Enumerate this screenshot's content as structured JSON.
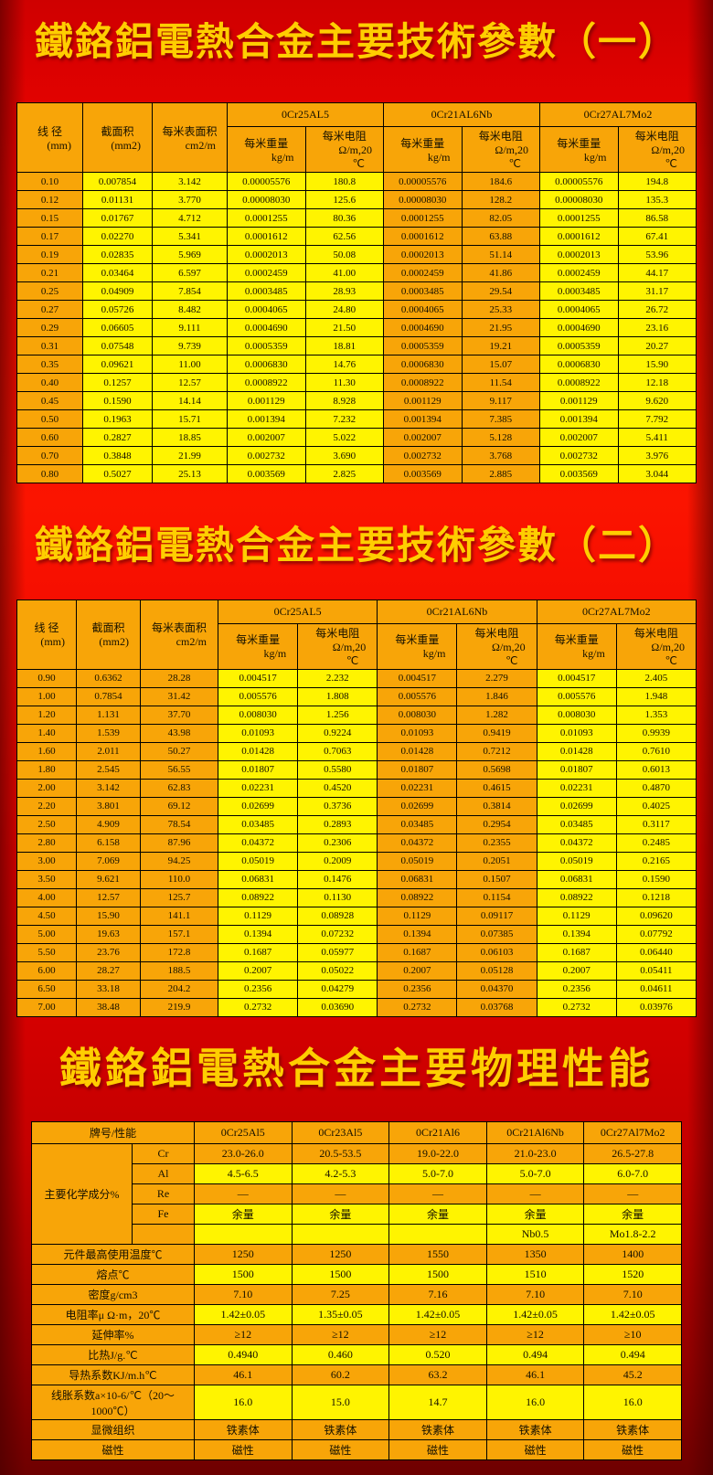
{
  "page": {
    "title1": "鐵鉻鋁電熱合金主要技術參數（一）",
    "title2": "鐵鉻鋁電熱合金主要技術參數（二）",
    "title3": "鐵鉻鋁電熱合金主要物理性能"
  },
  "colors": {
    "background_red": "#E80000",
    "title_gold": "#FFCE00",
    "cell_orange": "#F8A508",
    "cell_yellow": "#FFF400",
    "border_black": "#000000"
  },
  "param_headers": {
    "diameter": "线 径",
    "diameter_unit": "(mm)",
    "area": "截面积",
    "area_unit": "(mm2)",
    "surface": "每米表面积",
    "surface_unit": "cm2/m",
    "alloys": [
      "0Cr25AL5",
      "0Cr21AL6Nb",
      "0Cr27AL7Mo2"
    ],
    "weight_label": "每米重量",
    "weight_unit": "kg/m",
    "resistance_label": "每米电阻",
    "resistance_unit": "Ω/m,20",
    "resistance_unit2": "℃"
  },
  "table1": {
    "rows": [
      [
        "0.10",
        "0.007854",
        "3.142",
        "0.00005576",
        "180.8",
        "0.00005576",
        "184.6",
        "0.00005576",
        "194.8"
      ],
      [
        "0.12",
        "0.01131",
        "3.770",
        "0.00008030",
        "125.6",
        "0.00008030",
        "128.2",
        "0.00008030",
        "135.3"
      ],
      [
        "0.15",
        "0.01767",
        "4.712",
        "0.0001255",
        "80.36",
        "0.0001255",
        "82.05",
        "0.0001255",
        "86.58"
      ],
      [
        "0.17",
        "0.02270",
        "5.341",
        "0.0001612",
        "62.56",
        "0.0001612",
        "63.88",
        "0.0001612",
        "67.41"
      ],
      [
        "0.19",
        "0.02835",
        "5.969",
        "0.0002013",
        "50.08",
        "0.0002013",
        "51.14",
        "0.0002013",
        "53.96"
      ],
      [
        "0.21",
        "0.03464",
        "6.597",
        "0.0002459",
        "41.00",
        "0.0002459",
        "41.86",
        "0.0002459",
        "44.17"
      ],
      [
        "0.25",
        "0.04909",
        "7.854",
        "0.0003485",
        "28.93",
        "0.0003485",
        "29.54",
        "0.0003485",
        "31.17"
      ],
      [
        "0.27",
        "0.05726",
        "8.482",
        "0.0004065",
        "24.80",
        "0.0004065",
        "25.33",
        "0.0004065",
        "26.72"
      ],
      [
        "0.29",
        "0.06605",
        "9.111",
        "0.0004690",
        "21.50",
        "0.0004690",
        "21.95",
        "0.0004690",
        "23.16"
      ],
      [
        "0.31",
        "0.07548",
        "9.739",
        "0.0005359",
        "18.81",
        "0.0005359",
        "19.21",
        "0.0005359",
        "20.27"
      ],
      [
        "0.35",
        "0.09621",
        "11.00",
        "0.0006830",
        "14.76",
        "0.0006830",
        "15.07",
        "0.0006830",
        "15.90"
      ],
      [
        "0.40",
        "0.1257",
        "12.57",
        "0.0008922",
        "11.30",
        "0.0008922",
        "11.54",
        "0.0008922",
        "12.18"
      ],
      [
        "0.45",
        "0.1590",
        "14.14",
        "0.001129",
        "8.928",
        "0.001129",
        "9.117",
        "0.001129",
        "9.620"
      ],
      [
        "0.50",
        "0.1963",
        "15.71",
        "0.001394",
        "7.232",
        "0.001394",
        "7.385",
        "0.001394",
        "7.792"
      ],
      [
        "0.60",
        "0.2827",
        "18.85",
        "0.002007",
        "5.022",
        "0.002007",
        "5.128",
        "0.002007",
        "5.411"
      ],
      [
        "0.70",
        "0.3848",
        "21.99",
        "0.002732",
        "3.690",
        "0.002732",
        "3.768",
        "0.002732",
        "3.976"
      ],
      [
        "0.80",
        "0.5027",
        "25.13",
        "0.003569",
        "2.825",
        "0.003569",
        "2.885",
        "0.003569",
        "3.044"
      ]
    ]
  },
  "table2": {
    "rows": [
      [
        "0.90",
        "0.6362",
        "28.28",
        "0.004517",
        "2.232",
        "0.004517",
        "2.279",
        "0.004517",
        "2.405"
      ],
      [
        "1.00",
        "0.7854",
        "31.42",
        "0.005576",
        "1.808",
        "0.005576",
        "1.846",
        "0.005576",
        "1.948"
      ],
      [
        "1.20",
        "1.131",
        "37.70",
        "0.008030",
        "1.256",
        "0.008030",
        "1.282",
        "0.008030",
        "1.353"
      ],
      [
        "1.40",
        "1.539",
        "43.98",
        "0.01093",
        "0.9224",
        "0.01093",
        "0.9419",
        "0.01093",
        "0.9939"
      ],
      [
        "1.60",
        "2.011",
        "50.27",
        "0.01428",
        "0.7063",
        "0.01428",
        "0.7212",
        "0.01428",
        "0.7610"
      ],
      [
        "1.80",
        "2.545",
        "56.55",
        "0.01807",
        "0.5580",
        "0.01807",
        "0.5698",
        "0.01807",
        "0.6013"
      ],
      [
        "2.00",
        "3.142",
        "62.83",
        "0.02231",
        "0.4520",
        "0.02231",
        "0.4615",
        "0.02231",
        "0.4870"
      ],
      [
        "2.20",
        "3.801",
        "69.12",
        "0.02699",
        "0.3736",
        "0.02699",
        "0.3814",
        "0.02699",
        "0.4025"
      ],
      [
        "2.50",
        "4.909",
        "78.54",
        "0.03485",
        "0.2893",
        "0.03485",
        "0.2954",
        "0.03485",
        "0.3117"
      ],
      [
        "2.80",
        "6.158",
        "87.96",
        "0.04372",
        "0.2306",
        "0.04372",
        "0.2355",
        "0.04372",
        "0.2485"
      ],
      [
        "3.00",
        "7.069",
        "94.25",
        "0.05019",
        "0.2009",
        "0.05019",
        "0.2051",
        "0.05019",
        "0.2165"
      ],
      [
        "3.50",
        "9.621",
        "110.0",
        "0.06831",
        "0.1476",
        "0.06831",
        "0.1507",
        "0.06831",
        "0.1590"
      ],
      [
        "4.00",
        "12.57",
        "125.7",
        "0.08922",
        "0.1130",
        "0.08922",
        "0.1154",
        "0.08922",
        "0.1218"
      ],
      [
        "4.50",
        "15.90",
        "141.1",
        "0.1129",
        "0.08928",
        "0.1129",
        "0.09117",
        "0.1129",
        "0.09620"
      ],
      [
        "5.00",
        "19.63",
        "157.1",
        "0.1394",
        "0.07232",
        "0.1394",
        "0.07385",
        "0.1394",
        "0.07792"
      ],
      [
        "5.50",
        "23.76",
        "172.8",
        "0.1687",
        "0.05977",
        "0.1687",
        "0.06103",
        "0.1687",
        "0.06440"
      ],
      [
        "6.00",
        "28.27",
        "188.5",
        "0.2007",
        "0.05022",
        "0.2007",
        "0.05128",
        "0.2007",
        "0.05411"
      ],
      [
        "6.50",
        "33.18",
        "204.2",
        "0.2356",
        "0.04279",
        "0.2356",
        "0.04370",
        "0.2356",
        "0.04611"
      ],
      [
        "7.00",
        "38.48",
        "219.9",
        "0.2732",
        "0.03690",
        "0.2732",
        "0.03768",
        "0.2732",
        "0.03976"
      ]
    ]
  },
  "table3": {
    "header_label": "牌号/性能",
    "alloys": [
      "0Cr25Al5",
      "0Cr23Al5",
      "0Cr21Al6",
      "0Cr21Al6Nb",
      "0Cr27Al7Mo2"
    ],
    "chem_label": "主要化学成分%",
    "chem_rows": [
      {
        "element": "Cr",
        "values": [
          "23.0-26.0",
          "20.5-53.5",
          "19.0-22.0",
          "21.0-23.0",
          "26.5-27.8"
        ]
      },
      {
        "element": "Al",
        "values": [
          "4.5-6.5",
          "4.2-5.3",
          "5.0-7.0",
          "5.0-7.0",
          "6.0-7.0"
        ]
      },
      {
        "element": "Re",
        "values": [
          "—",
          "—",
          "—",
          "—",
          "—"
        ]
      },
      {
        "element": "Fe",
        "values": [
          "余量",
          "余量",
          "余量",
          "余量",
          "余量"
        ]
      },
      {
        "element": "",
        "values": [
          "",
          "",
          "",
          "Nb0.5",
          "Mo1.8-2.2"
        ]
      }
    ],
    "prop_rows": [
      {
        "label": "元件最高使用温度℃",
        "values": [
          "1250",
          "1250",
          "1550",
          "1350",
          "1400"
        ]
      },
      {
        "label": "熔点℃",
        "values": [
          "1500",
          "1500",
          "1500",
          "1510",
          "1520"
        ]
      },
      {
        "label": "密度g/cm3",
        "values": [
          "7.10",
          "7.25",
          "7.16",
          "7.10",
          "7.10"
        ]
      },
      {
        "label": "电阻率μ Ω·m，20℃",
        "values": [
          "1.42±0.05",
          "1.35±0.05",
          "1.42±0.05",
          "1.42±0.05",
          "1.42±0.05"
        ]
      },
      {
        "label": "延伸率%",
        "values": [
          "≥12",
          "≥12",
          "≥12",
          "≥12",
          "≥10"
        ]
      },
      {
        "label": "比热J/g.℃",
        "values": [
          "0.4940",
          "0.460",
          "0.520",
          "0.494",
          "0.494"
        ]
      },
      {
        "label": "导热系数KJ/m.h℃",
        "values": [
          "46.1",
          "60.2",
          "63.2",
          "46.1",
          "45.2"
        ]
      },
      {
        "label": "线胀系数a×10-6/℃（20～1000℃）",
        "values": [
          "16.0",
          "15.0",
          "14.7",
          "16.0",
          "16.0"
        ]
      },
      {
        "label": "显微组织",
        "values": [
          "铁素体",
          "铁素体",
          "铁素体",
          "铁素体",
          "铁素体"
        ]
      },
      {
        "label": "磁性",
        "values": [
          "磁性",
          "磁性",
          "磁性",
          "磁性",
          "磁性"
        ]
      }
    ]
  }
}
